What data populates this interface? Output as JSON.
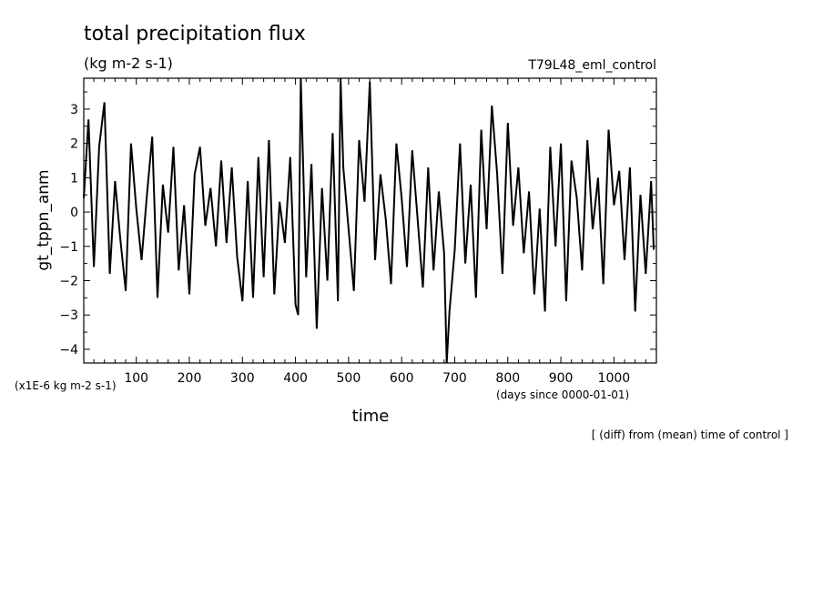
{
  "header": {
    "title": "total precipitation flux",
    "units": "(kg m-2 s-1)",
    "experiment": "T79L48_eml_control"
  },
  "footer": {
    "scale_note": "(x1E-6 kg m-2 s-1)",
    "time_origin": "(days since 0000-01-01)",
    "operation_note": "[ (diff) from (mean) time of control ]"
  },
  "chart_data": {
    "type": "line",
    "title": "total precipitation flux",
    "subtitle": "(kg m-2 s-1)",
    "xlabel": "time",
    "ylabel": "gt_tppn_anm",
    "xlim": [
      1,
      1080
    ],
    "ylim": [
      -4.4,
      3.9
    ],
    "x_ticks": [
      100,
      200,
      300,
      400,
      500,
      600,
      700,
      800,
      900,
      1000
    ],
    "y_ticks": [
      3,
      2,
      1,
      0,
      -1,
      -2,
      -3,
      -4
    ],
    "y_tick_labels": [
      "3",
      "2",
      "1",
      "0",
      "−1",
      "−2",
      "−3",
      "−4"
    ],
    "grid": false,
    "series": [
      {
        "x": [
          1,
          10,
          20,
          30,
          40,
          50,
          60,
          70,
          80,
          90,
          100,
          110,
          120,
          130,
          140,
          150,
          160,
          170,
          180,
          190,
          200,
          210,
          220,
          230,
          240,
          250,
          260,
          270,
          280,
          290,
          300,
          310,
          320,
          330,
          340,
          350,
          360,
          370,
          380,
          390,
          400,
          405,
          410,
          420,
          430,
          440,
          450,
          460,
          470,
          480,
          485,
          490,
          500,
          510,
          520,
          530,
          540,
          550,
          560,
          570,
          580,
          590,
          600,
          610,
          620,
          630,
          640,
          650,
          660,
          670,
          680,
          685,
          690,
          700,
          710,
          720,
          730,
          740,
          750,
          760,
          770,
          780,
          790,
          800,
          810,
          820,
          830,
          840,
          850,
          860,
          870,
          880,
          890,
          900,
          910,
          920,
          930,
          940,
          950,
          960,
          970,
          980,
          990,
          1000,
          1010,
          1020,
          1030,
          1040,
          1050,
          1060,
          1070,
          1075
        ],
        "y": [
          0.4,
          2.7,
          -1.6,
          1.9,
          3.2,
          -1.8,
          0.9,
          -0.8,
          -2.3,
          2.0,
          0.1,
          -1.4,
          0.5,
          2.2,
          -2.5,
          0.8,
          -0.6,
          1.9,
          -1.7,
          0.2,
          -2.4,
          1.1,
          1.9,
          -0.4,
          0.7,
          -1.0,
          1.5,
          -0.9,
          1.3,
          -1.3,
          -2.6,
          0.9,
          -2.5,
          1.6,
          -1.9,
          2.1,
          -2.4,
          0.3,
          -0.9,
          1.6,
          -2.7,
          -3.0,
          3.9,
          -1.9,
          1.4,
          -3.4,
          0.7,
          -2.0,
          2.3,
          -2.6,
          3.9,
          1.3,
          -0.5,
          -2.3,
          2.1,
          0.3,
          3.8,
          -1.4,
          1.1,
          -0.2,
          -2.1,
          2.0,
          0.4,
          -1.6,
          1.8,
          -0.2,
          -2.2,
          1.3,
          -1.7,
          0.6,
          -1.2,
          -4.4,
          -2.9,
          -1.1,
          2.0,
          -1.5,
          0.8,
          -2.5,
          2.4,
          -0.5,
          3.1,
          1.1,
          -1.8,
          2.6,
          -0.4,
          1.3,
          -1.2,
          0.6,
          -2.4,
          0.1,
          -2.9,
          1.9,
          -1.0,
          2.0,
          -2.6,
          1.5,
          0.4,
          -1.7,
          2.1,
          -0.5,
          1.0,
          -2.1,
          2.4,
          0.2,
          1.2,
          -1.4,
          1.3,
          -2.9,
          0.5,
          -1.8,
          0.9,
          -1.1
        ]
      }
    ]
  }
}
